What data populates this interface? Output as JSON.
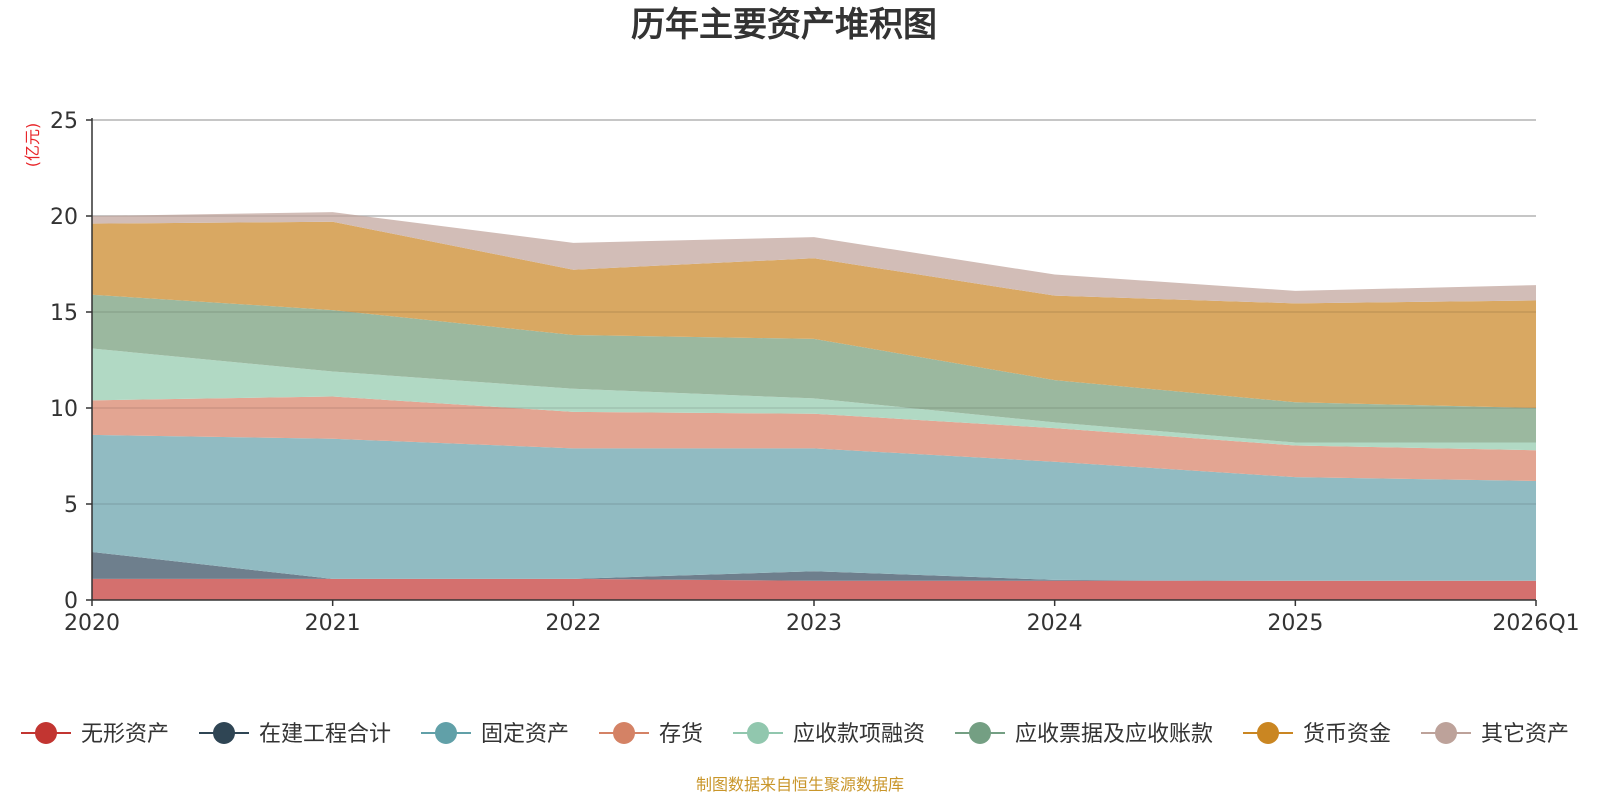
{
  "chart_data": {
    "type": "area",
    "stacked": true,
    "title": "历年主要资产堆积图",
    "unit_label": "(亿元)",
    "source": "制图数据来自恒生聚源数据库",
    "categories": [
      "2020",
      "2021",
      "2022",
      "2023",
      "2024",
      "2025",
      "2026Q1"
    ],
    "ylim": [
      0,
      25
    ],
    "yticks": [
      0,
      5,
      10,
      15,
      20,
      25
    ],
    "grid": true,
    "legend_position": "bottom",
    "series": [
      {
        "name": "无形资产",
        "color": "#c23531",
        "fill": "#d4706e",
        "values": [
          1.1,
          1.1,
          1.1,
          1.0,
          1.0,
          1.0,
          1.0
        ]
      },
      {
        "name": "在建工程合计",
        "color": "#2f4554",
        "fill": "#6e7f8d",
        "values": [
          1.4,
          0.0,
          0.0,
          0.5,
          0.05,
          0.0,
          0.0
        ]
      },
      {
        "name": "固定资产",
        "color": "#61a0a8",
        "fill": "#91bbc2",
        "values": [
          6.1,
          7.3,
          6.8,
          6.4,
          6.15,
          5.4,
          5.2
        ]
      },
      {
        "name": "存货",
        "color": "#d48265",
        "fill": "#e3a592",
        "values": [
          1.8,
          2.2,
          1.9,
          1.8,
          1.75,
          1.65,
          1.6
        ]
      },
      {
        "name": "应收款项融资",
        "color": "#91c7ae",
        "fill": "#b1d9c4",
        "values": [
          2.7,
          1.3,
          1.2,
          0.8,
          0.3,
          0.15,
          0.4
        ]
      },
      {
        "name": "应收票据及应收账款",
        "color": "#749f83",
        "fill": "#9bb89f",
        "values": [
          2.8,
          3.2,
          2.8,
          3.1,
          2.2,
          2.1,
          1.8
        ]
      },
      {
        "name": "货币资金",
        "color": "#ca8622",
        "fill": "#d9a862",
        "values": [
          3.7,
          4.6,
          3.4,
          4.2,
          4.4,
          5.15,
          5.6
        ]
      },
      {
        "name": "其它资产",
        "color": "#bda29a",
        "fill": "#d2bdb7",
        "values": [
          0.4,
          0.5,
          1.4,
          1.1,
          1.1,
          0.65,
          0.8
        ]
      }
    ]
  }
}
